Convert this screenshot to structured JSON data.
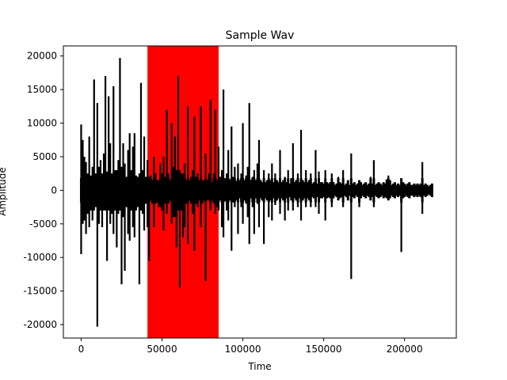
{
  "chart_data": {
    "type": "line",
    "title": "Sample Wav",
    "xlabel": "Time",
    "ylabel": "Amplitude",
    "xlim": [
      -11000,
      232000
    ],
    "ylim": [
      -22000,
      21500
    ],
    "xticks": [
      0,
      50000,
      100000,
      150000,
      200000
    ],
    "yticks": [
      -20000,
      -15000,
      -10000,
      -5000,
      0,
      5000,
      10000,
      15000,
      20000
    ],
    "grid": false,
    "highlight_span": {
      "x_start": 41000,
      "x_end": 85000,
      "color": "#ff0000"
    },
    "series": [
      {
        "color": "#000000",
        "x": [
          0,
          1000,
          2000,
          3000,
          4000,
          5000,
          6000,
          7000,
          8000,
          9000,
          10000,
          11000,
          12000,
          13000,
          14000,
          15000,
          16000,
          17000,
          18000,
          19000,
          20000,
          21000,
          22000,
          23000,
          24000,
          25000,
          26000,
          27000,
          28000,
          29000,
          30000,
          31000,
          32000,
          33000,
          34000,
          35000,
          36000,
          37000,
          38000,
          39000,
          40000,
          41000,
          42000,
          43000,
          44000,
          45000,
          46000,
          47000,
          48000,
          49000,
          50000,
          51000,
          52000,
          53000,
          54000,
          55000,
          56000,
          57000,
          58000,
          59000,
          60000,
          61000,
          62000,
          63000,
          64000,
          65000,
          66000,
          67000,
          68000,
          69000,
          70000,
          71000,
          72000,
          73000,
          74000,
          75000,
          76000,
          77000,
          78000,
          79000,
          80000,
          81000,
          82000,
          83000,
          84000,
          85000,
          86000,
          87000,
          88000,
          89000,
          90000,
          91000,
          92000,
          93000,
          94000,
          95000,
          96000,
          97000,
          98000,
          99000,
          100000,
          101000,
          102000,
          103000,
          104000,
          105000,
          106000,
          107000,
          108000,
          109000,
          110000,
          111000,
          112000,
          113000,
          114000,
          115000,
          116000,
          117000,
          118000,
          119000,
          120000,
          121000,
          122000,
          123000,
          124000,
          125000,
          126000,
          127000,
          128000,
          129000,
          130000,
          131000,
          132000,
          133000,
          134000,
          135000,
          136000,
          137000,
          138000,
          139000,
          140000,
          141000,
          142000,
          143000,
          144000,
          145000,
          146000,
          147000,
          148000,
          149000,
          150000,
          151000,
          152000,
          153000,
          154000,
          155000,
          156000,
          157000,
          158000,
          159000,
          160000,
          161000,
          162000,
          163000,
          164000,
          165000,
          166000,
          167000,
          168000,
          169000,
          170000,
          171000,
          172000,
          173000,
          174000,
          175000,
          176000,
          177000,
          178000,
          179000,
          180000,
          181000,
          182000,
          183000,
          184000,
          185000,
          186000,
          187000,
          188000,
          189000,
          190000,
          191000,
          192000,
          193000,
          194000,
          195000,
          196000,
          197000,
          198000,
          199000,
          200000,
          201000,
          202000,
          203000,
          204000,
          205000,
          206000,
          207000,
          208000,
          209000,
          210000,
          211000,
          212000,
          213000,
          214000,
          215000,
          216000,
          217000,
          218000,
          219000,
          220000
        ],
        "y_max": [
          9800,
          7500,
          5000,
          4200,
          2500,
          8000,
          2200,
          3500,
          16500,
          2500,
          13000,
          3500,
          4500,
          2500,
          5500,
          17000,
          2800,
          14000,
          7000,
          2500,
          15500,
          3000,
          3000,
          4500,
          19700,
          3500,
          7000,
          4000,
          2000,
          6000,
          8500,
          3000,
          6500,
          8500,
          2200,
          2000,
          2500,
          16000,
          3000,
          8000,
          2000,
          4500,
          2000,
          2200,
          1500,
          5000,
          2500,
          1500,
          1500,
          4000,
          2500,
          5000,
          2000,
          12000,
          2500,
          1500,
          10000,
          3500,
          8000,
          3000,
          17000,
          3000,
          2500,
          2500,
          4000,
          1500,
          12500,
          1500,
          2000,
          3000,
          11000,
          2000,
          2500,
          1500,
          12500,
          1500,
          1500,
          5500,
          1500,
          2500,
          13500,
          1200,
          2500,
          12000,
          1500,
          6500,
          2000,
          3000,
          15000,
          1800,
          2500,
          6000,
          1600,
          9500,
          2000,
          3500,
          1400,
          4000,
          1500,
          2500,
          10000,
          1500,
          2200,
          3500,
          13000,
          1500,
          2000,
          3000,
          1500,
          4000,
          7500,
          1500,
          1200,
          3000,
          1200,
          1500,
          2500,
          1500,
          4000,
          1200,
          2500,
          1500,
          1200,
          6000,
          1200,
          1500,
          2000,
          1200,
          3000,
          1000,
          1800,
          7000,
          1200,
          1500,
          2500,
          1200,
          9000,
          1500,
          1200,
          3000,
          1200,
          1500,
          2500,
          1000,
          1200,
          6000,
          1000,
          2800,
          1200,
          1200,
          1000,
          3000,
          1200,
          1000,
          1200,
          2500,
          1200,
          800,
          1000,
          2000,
          1200,
          1000,
          3000,
          800,
          1000,
          1500,
          800,
          5500,
          1000,
          1200,
          800,
          1000,
          1500,
          1200,
          800,
          1000,
          1200,
          800,
          1000,
          2000,
          1000,
          4500,
          800,
          1000,
          1200,
          1000,
          800,
          1200,
          1000,
          1600,
          2200,
          1500,
          800,
          1000,
          1200,
          800,
          1000,
          800,
          1800,
          1200,
          1000,
          800,
          1000,
          1200,
          800,
          800,
          1000,
          800,
          1000,
          800,
          1000,
          4200,
          800,
          1000,
          800,
          600,
          800,
          1000
        ],
        "y_min": [
          -9500,
          -5000,
          -4500,
          -6500,
          -3500,
          -5500,
          -3000,
          -4500,
          -3000,
          -2500,
          -20300,
          -5000,
          -3000,
          -5500,
          -3000,
          -3000,
          -10500,
          -3000,
          -5000,
          -3500,
          -6500,
          -3000,
          -8500,
          -3500,
          -3000,
          -14000,
          -4000,
          -12000,
          -2500,
          -6500,
          -7500,
          -3000,
          -5500,
          -7000,
          -3000,
          -2500,
          -14000,
          -3000,
          -3500,
          -6000,
          -2000,
          -5500,
          -10500,
          -1500,
          -2000,
          -5500,
          -2000,
          -1800,
          -2500,
          -2500,
          -3000,
          -6000,
          -2000,
          -3500,
          -2000,
          -1500,
          -5000,
          -4000,
          -4000,
          -8500,
          -3000,
          -14500,
          -3000,
          -7000,
          -5500,
          -2000,
          -8000,
          -1500,
          -2000,
          -3500,
          -9000,
          -2000,
          -2500,
          -1500,
          -5500,
          -2000,
          -1500,
          -13500,
          -1500,
          -1500,
          -3000,
          -1500,
          -2000,
          -3500,
          -2500,
          -3000,
          -1500,
          -5500,
          -7000,
          -1600,
          -3000,
          -4500,
          -1500,
          -9000,
          -1800,
          -2500,
          -1500,
          -6500,
          -1200,
          -2500,
          -5000,
          -1500,
          -2000,
          -4000,
          -8000,
          -1200,
          -2500,
          -6500,
          -1200,
          -2000,
          -5500,
          -1200,
          -1500,
          -8000,
          -1200,
          -1500,
          -4000,
          -1500,
          -4500,
          -1200,
          -2200,
          -1500,
          -1200,
          -3500,
          -1200,
          -1500,
          -4500,
          -1200,
          -3000,
          -1000,
          -1500,
          -3000,
          -1200,
          -1500,
          -2500,
          -1200,
          -4500,
          -1500,
          -1200,
          -2500,
          -1200,
          -1500,
          -2500,
          -1000,
          -1200,
          -2500,
          -1000,
          -3500,
          -1200,
          -1200,
          -1000,
          -4500,
          -1200,
          -1000,
          -1200,
          -2500,
          -1200,
          -800,
          -1000,
          -1500,
          -1200,
          -1000,
          -2500,
          -800,
          -1000,
          -1500,
          -800,
          -13200,
          -1000,
          -1200,
          -800,
          -1000,
          -2500,
          -1200,
          -800,
          -1000,
          -1200,
          -800,
          -1000,
          -1500,
          -1000,
          -2500,
          -800,
          -1000,
          -1200,
          -1000,
          -800,
          -1200,
          -1000,
          -1200,
          -1500,
          -1200,
          -800,
          -1000,
          -1200,
          -800,
          -1000,
          -800,
          -9200,
          -1200,
          -1000,
          -800,
          -1000,
          -1200,
          -800,
          -800,
          -1000,
          -800,
          -1000,
          -800,
          -1000,
          -3500,
          -800,
          -1000,
          -800,
          -600,
          -800,
          -1000
        ]
      }
    ]
  }
}
